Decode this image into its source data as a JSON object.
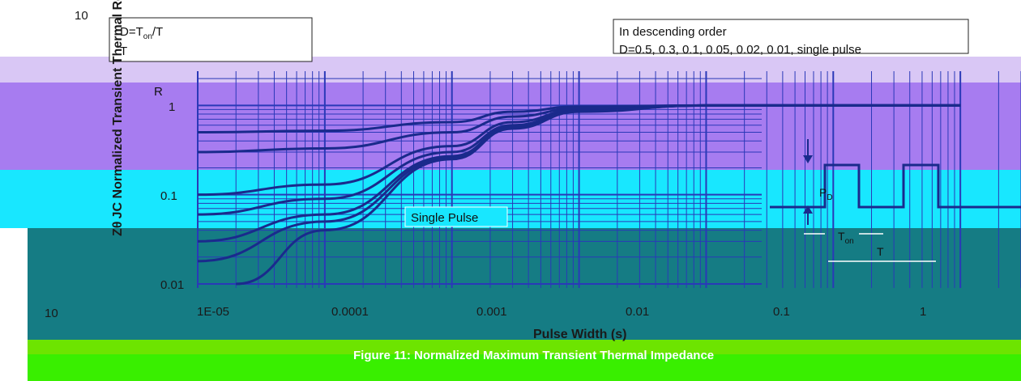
{
  "chart_data": {
    "type": "line",
    "title": "",
    "xlabel": "Pulse Width (s)",
    "ylabel": "Zθ JC Normalized Transient Thermal Resistance",
    "x_scale": "log",
    "y_scale": "log",
    "xlim": [
      1e-06,
      10
    ],
    "ylim": [
      0.01,
      10
    ],
    "x_ticks": [
      "10",
      "1E-05",
      "0.0001",
      "0.001",
      "0.01",
      "0.1",
      "1"
    ],
    "y_ticks": [
      "10",
      "1",
      "0.1",
      "0.01"
    ],
    "grid": true,
    "series": [
      {
        "name": "D=0.5",
        "x": [
          1e-05,
          0.0001,
          0.001,
          0.003,
          0.01,
          0.1,
          10
        ],
        "y": [
          0.5,
          0.52,
          0.65,
          0.85,
          0.97,
          1.0,
          1.0
        ]
      },
      {
        "name": "D=0.3",
        "x": [
          1e-05,
          0.0001,
          0.001,
          0.003,
          0.01,
          0.1,
          10
        ],
        "y": [
          0.3,
          0.33,
          0.5,
          0.75,
          0.93,
          1.0,
          1.0
        ]
      },
      {
        "name": "D=0.1",
        "x": [
          1e-05,
          0.0001,
          0.001,
          0.003,
          0.01,
          0.1,
          10
        ],
        "y": [
          0.1,
          0.13,
          0.35,
          0.65,
          0.9,
          1.0,
          1.0
        ]
      },
      {
        "name": "D=0.05",
        "x": [
          1e-05,
          0.0001,
          0.001,
          0.003,
          0.01,
          0.1,
          10
        ],
        "y": [
          0.06,
          0.09,
          0.3,
          0.6,
          0.88,
          1.0,
          1.0
        ]
      },
      {
        "name": "D=0.02",
        "x": [
          1e-05,
          0.0001,
          0.001,
          0.003,
          0.01,
          0.1,
          10
        ],
        "y": [
          0.03,
          0.06,
          0.27,
          0.57,
          0.87,
          1.0,
          1.0
        ]
      },
      {
        "name": "D=0.01",
        "x": [
          1e-05,
          0.0001,
          0.001,
          0.003,
          0.01,
          0.1,
          10
        ],
        "y": [
          0.018,
          0.05,
          0.26,
          0.56,
          0.86,
          1.0,
          1.0
        ]
      },
      {
        "name": "single pulse",
        "x": [
          2e-05,
          0.0001,
          0.001,
          0.003,
          0.01,
          0.1,
          10
        ],
        "y": [
          0.01,
          0.04,
          0.25,
          0.55,
          0.85,
          1.0,
          1.0
        ]
      }
    ],
    "annotations": {
      "formula_box_line1": "D=T",
      "formula_box_line1_sub": "on",
      "formula_box_line1_tail": "/T",
      "formula_box_line2": "T",
      "formula_box_line3": "R",
      "order_box_line1": "In descending order",
      "order_box_line2": "D=0.5, 0.3, 0.1, 0.05, 0.02, 0.01, single pulse",
      "single_pulse_label": "Single Pulse",
      "inset_pd": "P",
      "inset_pd_sub": "D",
      "inset_ton": "T",
      "inset_ton_sub": "on",
      "inset_t": "T"
    },
    "caption": "Figure 11: Normalized Maximum Transient Thermal Impedance"
  },
  "colors": {
    "band_top": "#d9c7f5",
    "band_purple": "#a77cf0",
    "band_cyan": "#18e7ff",
    "band_teal": "#157c84",
    "band_green": "#6de400",
    "band_green2": "#39ef00",
    "curve": "#1a2a8c",
    "grid": "#2a39b8"
  }
}
